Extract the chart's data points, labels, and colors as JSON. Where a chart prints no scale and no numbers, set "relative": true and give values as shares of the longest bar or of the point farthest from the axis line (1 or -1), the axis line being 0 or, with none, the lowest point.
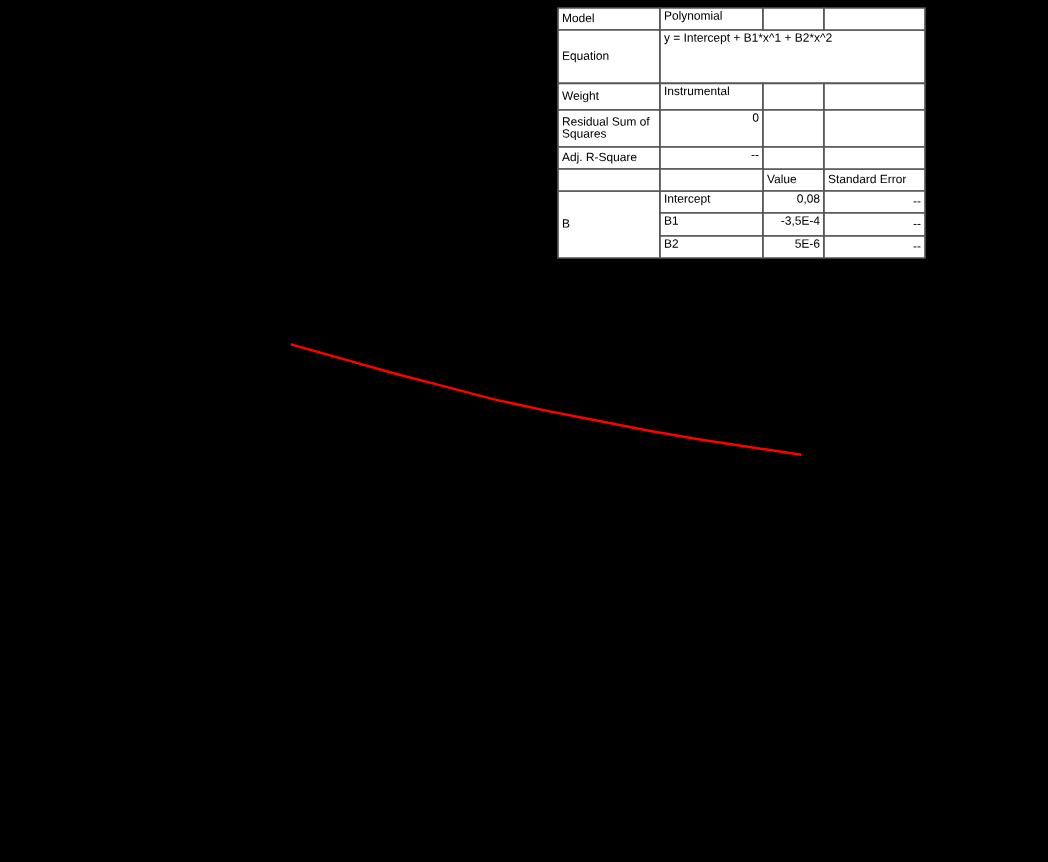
{
  "chart_data": {
    "type": "line",
    "relative": true,
    "categories": [
      null,
      null,
      null,
      null,
      null,
      null,
      null,
      null,
      null,
      null,
      null
    ],
    "series": [
      {
        "color": "#ff0000",
        "values": [
          1.0,
          0.87,
          0.74,
          0.62,
          0.5,
          0.4,
          0.31,
          0.22,
          0.14,
          0.07,
          0.0
        ]
      }
    ],
    "line_style": "solid",
    "annotations": [
      "Model",
      "Polynomial",
      "Equation",
      "y = Intercept + B1*x^1 + B2*x^2",
      "Weight",
      "Instrumental",
      "Residual Sum of Squares",
      "0",
      "Adj. R-Square",
      "--",
      "Value",
      "Standard Error",
      "B",
      "Intercept",
      "0,08",
      "--",
      "B1",
      "-3,5E-4",
      "--",
      "B2",
      "5E-6",
      "--"
    ]
  }
}
